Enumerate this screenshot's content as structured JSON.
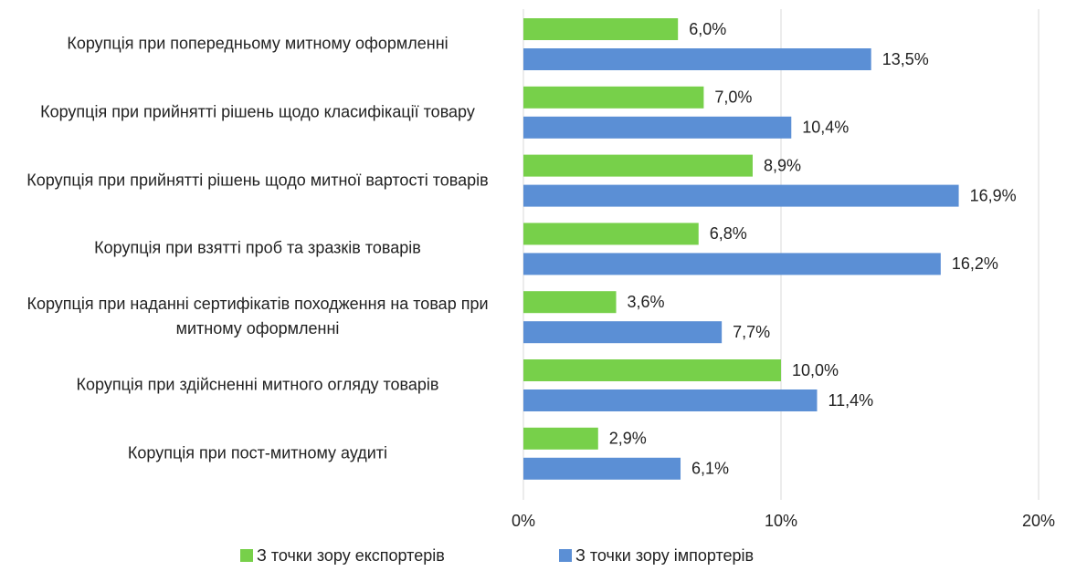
{
  "chart_data": {
    "type": "bar",
    "orientation": "horizontal",
    "categories": [
      "Корупція при попередньому митному оформленні",
      "Корупція при прийнятті рішень щодо класифікації товару",
      "Корупція при прийнятті рішень щодо митної вартості товарів",
      "Корупція при взятті проб та зразків товарів",
      "Корупція при наданні сертифікатів походження на товар при митному оформленні",
      "Корупція при здійсненні митного огляду товарів",
      "Корупція при пост-митному аудиті"
    ],
    "series": [
      {
        "name": "З точки зору експортерів",
        "color": "#77d04a",
        "values": [
          6.0,
          7.0,
          8.9,
          6.8,
          3.6,
          10.0,
          2.9
        ],
        "value_labels": [
          "6,0%",
          "7,0%",
          "8,9%",
          "6,8%",
          "3,6%",
          "10,0%",
          "2,9%"
        ]
      },
      {
        "name": "З точки зору імпортерів",
        "color": "#5b8fd5",
        "values": [
          13.5,
          10.4,
          16.9,
          16.2,
          7.7,
          11.4,
          6.1
        ],
        "value_labels": [
          "13,5%",
          "10,4%",
          "16,9%",
          "16,2%",
          "7,7%",
          "11,4%",
          "6,1%"
        ]
      }
    ],
    "xlim": [
      0,
      20
    ],
    "xticks": [
      {
        "value": 0,
        "label": "0%"
      },
      {
        "value": 10,
        "label": "10%"
      },
      {
        "value": 20,
        "label": "20%"
      }
    ],
    "grid": true,
    "legend": "bottom"
  }
}
